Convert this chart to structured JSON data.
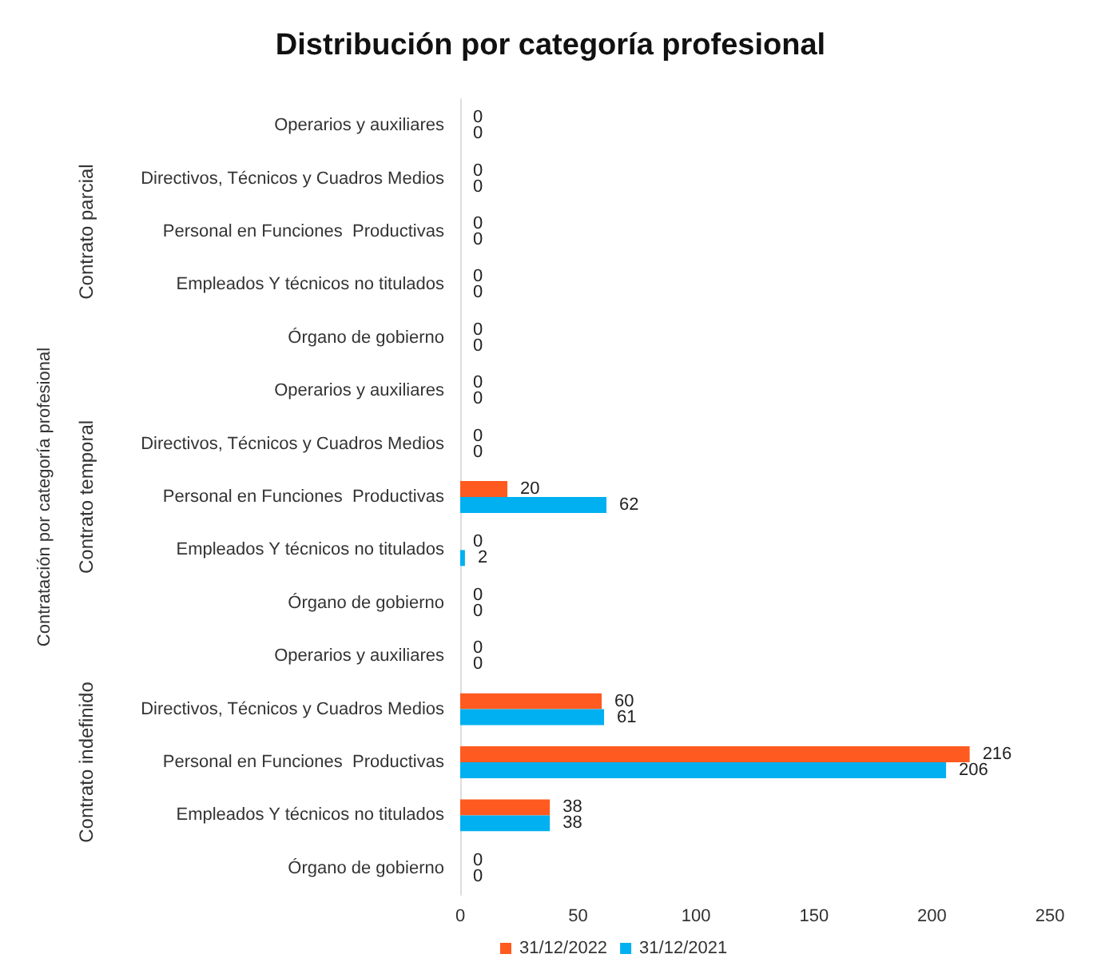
{
  "chart_data": {
    "type": "bar",
    "orientation": "horizontal",
    "title": "Distribución por categoría profesional",
    "ylabel": "Contratación por categoría profesional",
    "annotations": [
      "Contrato parcial",
      "Contrato temporal",
      "Contrato indefinido"
    ],
    "categories": [
      "Operarios y auxiliares",
      "Directivos, Técnicos y Cuadros Medios",
      "Personal en Funciones  Productivas",
      "Empleados Y técnicos no titulados",
      "Órgano de gobierno",
      "Operarios y auxiliares",
      "Directivos, Técnicos y Cuadros Medios",
      "Personal en Funciones  Productivas",
      "Empleados Y técnicos no titulados",
      "Órgano de gobierno",
      "Operarios y auxiliares",
      "Directivos, Técnicos y Cuadros Medios",
      "Personal en Funciones  Productivas",
      "Empleados Y técnicos no titulados",
      "Órgano de gobierno"
    ],
    "series": [
      {
        "name": "31/12/2022",
        "color": "#ff5a1f",
        "values": [
          0,
          0,
          0,
          0,
          0,
          0,
          0,
          20,
          0,
          0,
          0,
          60,
          216,
          38,
          0
        ]
      },
      {
        "name": "31/12/2021",
        "color": "#00b0f0",
        "values": [
          0,
          0,
          0,
          0,
          0,
          0,
          0,
          62,
          2,
          0,
          0,
          61,
          206,
          38,
          0
        ]
      }
    ],
    "xlim": [
      0,
      250
    ],
    "xticks": [
      0,
      50,
      100,
      150,
      200,
      250
    ],
    "data_labels": true,
    "grid": false,
    "legend": "bottom"
  }
}
